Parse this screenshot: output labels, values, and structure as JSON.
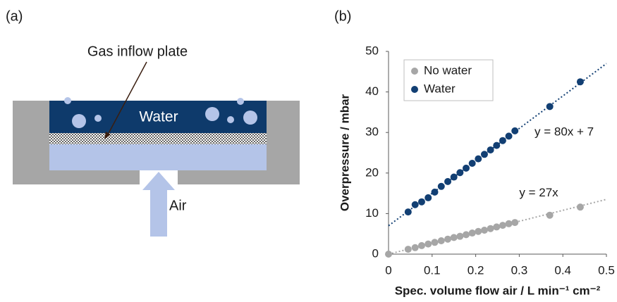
{
  "diagram": {
    "panel_label": "(a)",
    "callout": "Gas inflow plate",
    "water_label": "Water",
    "air_label": "Air"
  },
  "chart_data": {
    "type": "scatter",
    "panel_label": "(b)",
    "x_label": "Spec. volume flow air / L min⁻¹ cm⁻²",
    "y_label": "Overpressure / mbar",
    "xlim": [
      0,
      0.5
    ],
    "xticks": [
      0,
      0.1,
      0.2,
      0.3,
      0.4,
      0.5
    ],
    "ylim": [
      0,
      50
    ],
    "yticks": [
      0,
      10,
      20,
      30,
      40,
      50
    ],
    "grid": false,
    "legend": "upper-left",
    "series": [
      {
        "name": "No water",
        "color": "#a6a6a6",
        "x": [
          0,
          0.045,
          0.061,
          0.076,
          0.091,
          0.106,
          0.121,
          0.136,
          0.15,
          0.164,
          0.178,
          0.192,
          0.206,
          0.22,
          0.234,
          0.248,
          0.262,
          0.276,
          0.29,
          0.37,
          0.44
        ],
        "values": [
          0,
          1.2,
          1.6,
          2.1,
          2.5,
          2.9,
          3.3,
          3.7,
          4.1,
          4.4,
          4.8,
          5.2,
          5.6,
          5.9,
          6.3,
          6.7,
          7.1,
          7.5,
          7.8,
          9.6,
          11.6
        ]
      },
      {
        "name": "Water",
        "color": "#123f73",
        "x": [
          0.045,
          0.061,
          0.076,
          0.091,
          0.106,
          0.121,
          0.136,
          0.15,
          0.164,
          0.178,
          0.192,
          0.206,
          0.22,
          0.234,
          0.248,
          0.262,
          0.276,
          0.29,
          0.37,
          0.44
        ],
        "values": [
          10.4,
          12.2,
          12.9,
          13.9,
          15.3,
          16.7,
          17.9,
          19.0,
          20.1,
          21.2,
          22.4,
          23.5,
          24.6,
          25.7,
          26.8,
          28.0,
          29.1,
          30.4,
          36.4,
          42.5
        ]
      }
    ],
    "trendlines": [
      {
        "series": 1,
        "slope": 80,
        "intercept": 7,
        "label": "y = 80x + 7"
      },
      {
        "series": 0,
        "slope": 27,
        "intercept": 0,
        "label": "y = 27x"
      }
    ]
  }
}
